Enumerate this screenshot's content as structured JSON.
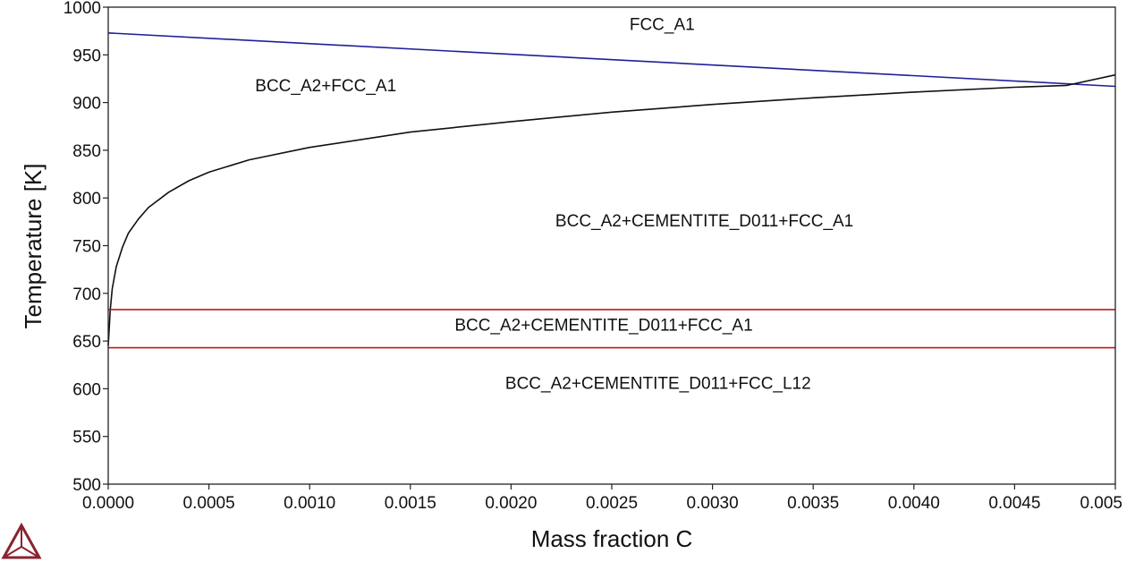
{
  "chart_data": {
    "type": "line",
    "title": "",
    "xlabel": "Mass fraction C",
    "ylabel": "Temperature [K]",
    "xlim": [
      0.0,
      0.005
    ],
    "ylim": [
      500,
      1000
    ],
    "x_ticks": [
      "0.0000",
      "0.0005",
      "0.0010",
      "0.0015",
      "0.0020",
      "0.0025",
      "0.0030",
      "0.0035",
      "0.0040",
      "0.0045",
      "0.005"
    ],
    "y_ticks": [
      "500",
      "550",
      "600",
      "650",
      "700",
      "750",
      "800",
      "850",
      "900",
      "950",
      "1000"
    ],
    "grid": false,
    "legend": "none",
    "series": [
      {
        "color": "#1f1f9a",
        "x": [
          0.0,
          0.005
        ],
        "y": [
          973,
          917
        ]
      },
      {
        "color": "#111111",
        "x": [
          0.0,
          1e-05,
          2e-05,
          4e-05,
          7e-05,
          0.0001,
          0.00015,
          0.0002,
          0.0003,
          0.0004,
          0.0005,
          0.0007,
          0.001,
          0.0015,
          0.002,
          0.0025,
          0.003,
          0.0035,
          0.004,
          0.0045,
          0.00476,
          0.005
        ],
        "y": [
          645,
          683,
          705,
          728,
          748,
          763,
          778,
          790,
          806,
          818,
          827,
          840,
          853,
          869,
          880,
          890,
          898,
          905,
          911,
          916,
          918,
          929
        ]
      },
      {
        "color": "#c01818",
        "x": [
          0.0,
          0.005
        ],
        "y": [
          683,
          683
        ]
      },
      {
        "color": "#c01818",
        "x": [
          0.0,
          0.005
        ],
        "y": [
          643,
          643
        ]
      }
    ],
    "annotations": [
      {
        "text": "FCC_A1",
        "x": 0.00275,
        "y": 976
      },
      {
        "text": "BCC_A2+FCC_A1",
        "x": 0.00108,
        "y": 912
      },
      {
        "text": "BCC_A2+CEMENTITE_D011+FCC_A1",
        "x": 0.00296,
        "y": 770
      },
      {
        "text": "BCC_A2+CEMENTITE_D011+FCC_A1",
        "x": 0.00246,
        "y": 661
      },
      {
        "text": "BCC_A2+CEMENTITE_D011+FCC_L12",
        "x": 0.00273,
        "y": 600
      }
    ]
  },
  "logo": {
    "name": "thermo-calc-logo",
    "color": "#8b2230"
  }
}
